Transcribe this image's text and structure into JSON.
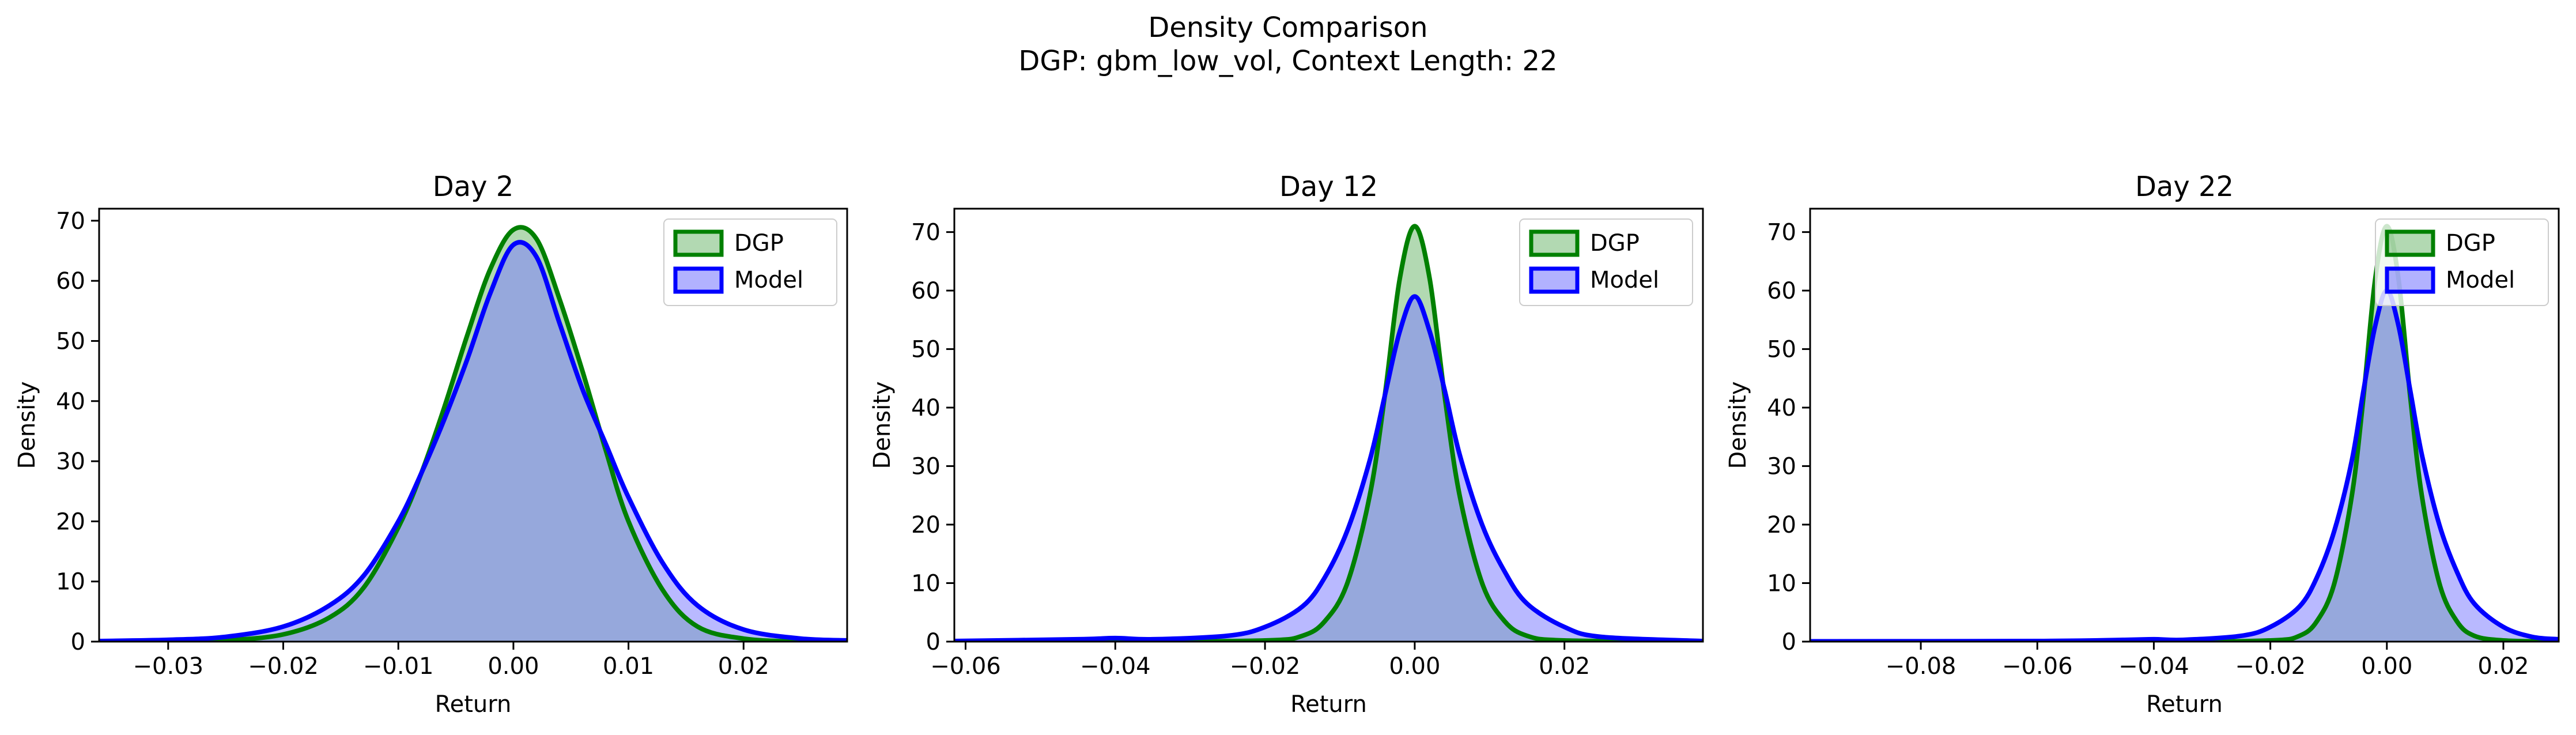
{
  "figure": {
    "title_line1": "Density Comparison",
    "title_line2": "DGP: gbm_low_vol, Context Length: 22"
  },
  "colors": {
    "dgp_line": "#008000",
    "dgp_fill": "#7fbf7f",
    "model_line": "#0000ff",
    "model_fill": "#7f7fff",
    "overlap_fill": "#7b96c8",
    "background": "#ffffff",
    "axes": "#000000"
  },
  "chart_data": [
    {
      "type": "area",
      "title": "Day 2",
      "xlabel": "Return",
      "ylabel": "Density",
      "xlim": [
        -0.036,
        0.029
      ],
      "ylim": [
        0,
        72
      ],
      "xticks": [
        -0.03,
        -0.02,
        -0.01,
        0.0,
        0.01,
        0.02
      ],
      "xtick_labels": [
        "−0.03",
        "−0.02",
        "−0.01",
        "0.00",
        "0.01",
        "0.02"
      ],
      "yticks": [
        0,
        10,
        20,
        30,
        40,
        50,
        60,
        70
      ],
      "ytick_labels": [
        "0",
        "10",
        "20",
        "30",
        "40",
        "50",
        "60",
        "70"
      ],
      "legend": "top-right",
      "series": [
        {
          "name": "DGP",
          "x": [
            -0.036,
            -0.03,
            -0.025,
            -0.02,
            -0.016,
            -0.013,
            -0.01,
            -0.008,
            -0.006,
            -0.004,
            -0.002,
            0.0,
            0.002,
            0.004,
            0.006,
            0.008,
            0.01,
            0.013,
            0.016,
            0.02,
            0.025,
            0.029
          ],
          "y": [
            0,
            0,
            0.2,
            1.2,
            4.0,
            9.0,
            19.0,
            28.0,
            39.0,
            51.0,
            62.0,
            68.5,
            67.0,
            57.0,
            45.0,
            32.0,
            20.0,
            8.5,
            2.5,
            0.5,
            0,
            0
          ]
        },
        {
          "name": "Model",
          "x": [
            -0.036,
            -0.03,
            -0.025,
            -0.02,
            -0.016,
            -0.013,
            -0.01,
            -0.008,
            -0.006,
            -0.004,
            -0.002,
            0.0,
            0.002,
            0.004,
            0.006,
            0.008,
            0.01,
            0.013,
            0.016,
            0.02,
            0.025,
            0.029
          ],
          "y": [
            0.1,
            0.3,
            0.8,
            2.5,
            6.0,
            11.0,
            20.0,
            28.0,
            37.0,
            47.0,
            58.0,
            66.0,
            64.0,
            53.0,
            42.0,
            33.0,
            24.0,
            13.0,
            6.0,
            2.0,
            0.5,
            0.2
          ]
        }
      ]
    },
    {
      "type": "area",
      "title": "Day 12",
      "xlabel": "Return",
      "ylabel": "Density",
      "xlim": [
        -0.0615,
        0.0385
      ],
      "ylim": [
        0,
        74
      ],
      "xticks": [
        -0.06,
        -0.04,
        -0.02,
        0.0,
        0.02
      ],
      "xtick_labels": [
        "−0.06",
        "−0.04",
        "−0.02",
        "0.00",
        "0.02"
      ],
      "yticks": [
        0,
        10,
        20,
        30,
        40,
        50,
        60,
        70
      ],
      "ytick_labels": [
        "0",
        "10",
        "20",
        "30",
        "40",
        "50",
        "60",
        "70"
      ],
      "legend": "top-right",
      "series": [
        {
          "name": "DGP",
          "x": [
            -0.0615,
            -0.04,
            -0.02,
            -0.015,
            -0.012,
            -0.009,
            -0.006,
            -0.004,
            -0.002,
            0.0,
            0.002,
            0.004,
            0.006,
            0.009,
            0.012,
            0.015,
            0.02,
            0.0385
          ],
          "y": [
            0,
            0,
            0.2,
            1.0,
            3.5,
            10.0,
            25.0,
            42.0,
            62.0,
            71.0,
            62.0,
            42.0,
            25.0,
            10.0,
            3.5,
            1.0,
            0.2,
            0
          ]
        },
        {
          "name": "Model",
          "x": [
            -0.0615,
            -0.045,
            -0.04,
            -0.035,
            -0.025,
            -0.02,
            -0.015,
            -0.012,
            -0.009,
            -0.006,
            -0.004,
            -0.002,
            0.0,
            0.002,
            0.004,
            0.006,
            0.009,
            0.012,
            0.015,
            0.02,
            0.025,
            0.0385
          ],
          "y": [
            0.1,
            0.4,
            0.6,
            0.4,
            1.0,
            2.5,
            6.0,
            11.0,
            19.0,
            31.0,
            42.0,
            53.0,
            59.0,
            53.0,
            43.0,
            32.0,
            20.0,
            12.0,
            6.5,
            2.5,
            0.8,
            0.1
          ]
        }
      ]
    },
    {
      "type": "area",
      "title": "Day 22",
      "xlabel": "Return",
      "ylabel": "Density",
      "xlim": [
        -0.099,
        0.0295
      ],
      "ylim": [
        0,
        74
      ],
      "xticks": [
        -0.08,
        -0.06,
        -0.04,
        -0.02,
        0.0,
        0.02
      ],
      "xtick_labels": [
        "−0.08",
        "−0.06",
        "−0.04",
        "−0.02",
        "0.00",
        "0.02"
      ],
      "yticks": [
        0,
        10,
        20,
        30,
        40,
        50,
        60,
        70
      ],
      "ytick_labels": [
        "0",
        "10",
        "20",
        "30",
        "40",
        "50",
        "60",
        "70"
      ],
      "legend": "top-right",
      "series": [
        {
          "name": "DGP",
          "x": [
            -0.099,
            -0.04,
            -0.02,
            -0.015,
            -0.012,
            -0.009,
            -0.006,
            -0.004,
            -0.002,
            0.0,
            0.002,
            0.004,
            0.006,
            0.009,
            0.012,
            0.015,
            0.02,
            0.0295
          ],
          "y": [
            0,
            0,
            0.2,
            1.0,
            3.5,
            10.0,
            25.0,
            42.0,
            62.0,
            71.0,
            62.0,
            42.0,
            25.0,
            10.0,
            3.5,
            1.0,
            0.2,
            0
          ]
        },
        {
          "name": "Model",
          "x": [
            -0.099,
            -0.06,
            -0.045,
            -0.04,
            -0.035,
            -0.025,
            -0.02,
            -0.015,
            -0.012,
            -0.009,
            -0.006,
            -0.004,
            -0.002,
            0.0,
            0.002,
            0.004,
            0.006,
            0.009,
            0.012,
            0.015,
            0.02,
            0.025,
            0.0295
          ],
          "y": [
            0.05,
            0.1,
            0.3,
            0.4,
            0.3,
            1.0,
            2.5,
            6.0,
            11.0,
            19.0,
            31.0,
            43.0,
            54.0,
            60.0,
            54.0,
            43.0,
            32.0,
            20.0,
            12.0,
            6.5,
            2.5,
            0.8,
            0.4
          ]
        }
      ]
    }
  ]
}
